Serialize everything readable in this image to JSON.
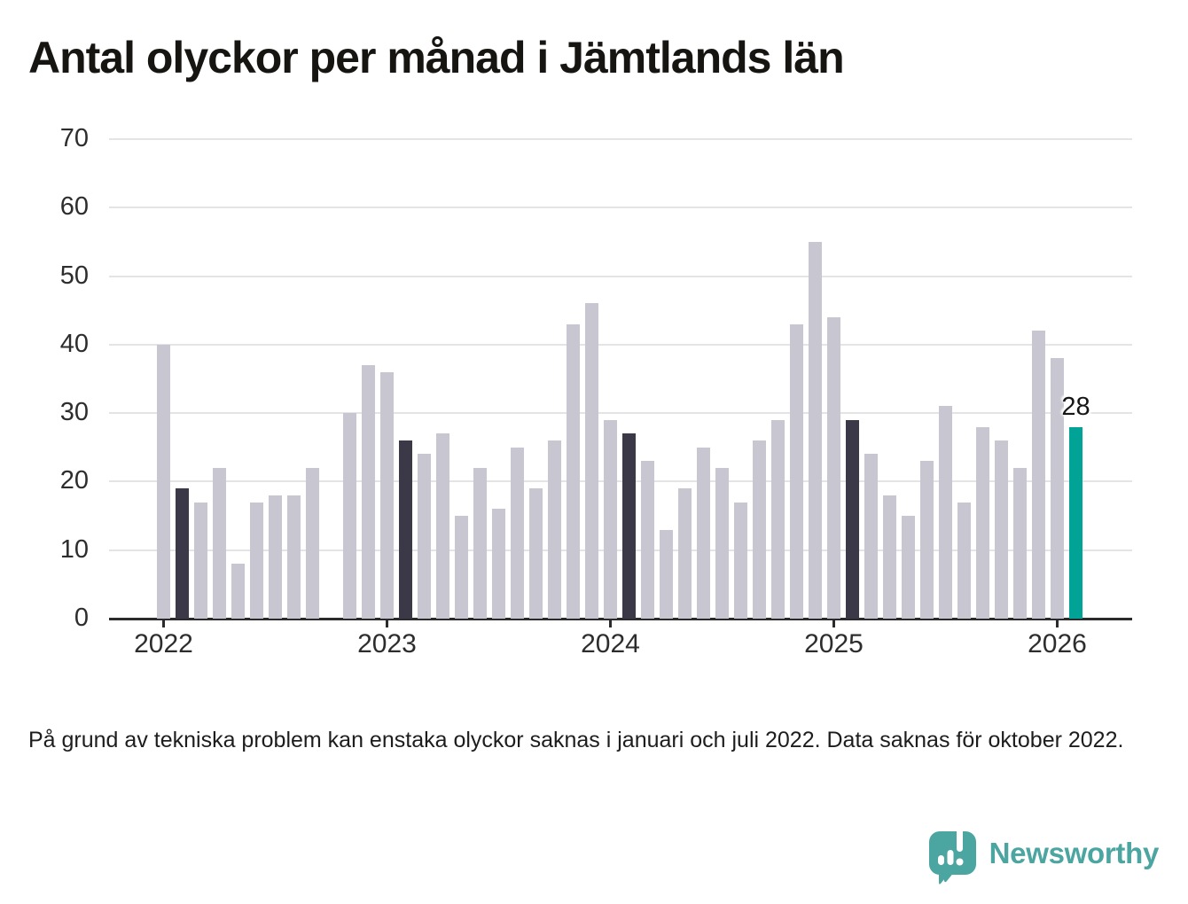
{
  "title": "Antal olyckor per månad i Jämtlands län",
  "footnote": "På grund av tekniska problem kan enstaka olyckor saknas i januari och juli 2022. Data saknas för oktober 2022.",
  "branding": {
    "name": "Newsworthy",
    "logo_icon": "speech-bubble-bar-chart-icon",
    "logo_color": "#4ba5a0"
  },
  "chart_data": {
    "type": "bar",
    "title": "Antal olyckor per månad i Jämtlands län",
    "xlabel": "",
    "ylabel": "",
    "ylim": [
      0,
      70
    ],
    "yticks": [
      0,
      10,
      20,
      30,
      40,
      50,
      60,
      70
    ],
    "grid": "horizontal",
    "legend_position": "none",
    "x_year_ticks": [
      {
        "label": "2022",
        "month_index": 0
      },
      {
        "label": "2023",
        "month_index": 12
      },
      {
        "label": "2024",
        "month_index": 24
      },
      {
        "label": "2025",
        "month_index": 36
      },
      {
        "label": "2026",
        "month_index": 48
      }
    ],
    "bars": [
      {
        "month": "2022-01",
        "value": 40,
        "style": "normal"
      },
      {
        "month": "2022-02",
        "value": 19,
        "style": "dark"
      },
      {
        "month": "2022-03",
        "value": 17,
        "style": "normal"
      },
      {
        "month": "2022-04",
        "value": 22,
        "style": "normal"
      },
      {
        "month": "2022-05",
        "value": 8,
        "style": "normal"
      },
      {
        "month": "2022-06",
        "value": 17,
        "style": "normal"
      },
      {
        "month": "2022-07",
        "value": 18,
        "style": "normal"
      },
      {
        "month": "2022-08",
        "value": 18,
        "style": "normal"
      },
      {
        "month": "2022-09",
        "value": 22,
        "style": "normal"
      },
      {
        "month": "2022-10",
        "value": null,
        "style": "missing"
      },
      {
        "month": "2022-11",
        "value": 30,
        "style": "normal"
      },
      {
        "month": "2022-12",
        "value": 37,
        "style": "normal"
      },
      {
        "month": "2023-01",
        "value": 36,
        "style": "normal"
      },
      {
        "month": "2023-02",
        "value": 26,
        "style": "dark"
      },
      {
        "month": "2023-03",
        "value": 24,
        "style": "normal"
      },
      {
        "month": "2023-04",
        "value": 27,
        "style": "normal"
      },
      {
        "month": "2023-05",
        "value": 15,
        "style": "normal"
      },
      {
        "month": "2023-06",
        "value": 22,
        "style": "normal"
      },
      {
        "month": "2023-07",
        "value": 16,
        "style": "normal"
      },
      {
        "month": "2023-08",
        "value": 25,
        "style": "normal"
      },
      {
        "month": "2023-09",
        "value": 19,
        "style": "normal"
      },
      {
        "month": "2023-10",
        "value": 26,
        "style": "normal"
      },
      {
        "month": "2023-11",
        "value": 43,
        "style": "normal"
      },
      {
        "month": "2023-12",
        "value": 46,
        "style": "normal"
      },
      {
        "month": "2024-01",
        "value": 29,
        "style": "normal"
      },
      {
        "month": "2024-02",
        "value": 27,
        "style": "dark"
      },
      {
        "month": "2024-03",
        "value": 23,
        "style": "normal"
      },
      {
        "month": "2024-04",
        "value": 13,
        "style": "normal"
      },
      {
        "month": "2024-05",
        "value": 19,
        "style": "normal"
      },
      {
        "month": "2024-06",
        "value": 25,
        "style": "normal"
      },
      {
        "month": "2024-07",
        "value": 22,
        "style": "normal"
      },
      {
        "month": "2024-08",
        "value": 17,
        "style": "normal"
      },
      {
        "month": "2024-09",
        "value": 26,
        "style": "normal"
      },
      {
        "month": "2024-10",
        "value": 29,
        "style": "normal"
      },
      {
        "month": "2024-11",
        "value": 43,
        "style": "normal"
      },
      {
        "month": "2024-12",
        "value": 55,
        "style": "normal"
      },
      {
        "month": "2025-01",
        "value": 44,
        "style": "normal"
      },
      {
        "month": "2025-02",
        "value": 29,
        "style": "dark"
      },
      {
        "month": "2025-03",
        "value": 24,
        "style": "normal"
      },
      {
        "month": "2025-04",
        "value": 18,
        "style": "normal"
      },
      {
        "month": "2025-05",
        "value": 15,
        "style": "normal"
      },
      {
        "month": "2025-06",
        "value": 23,
        "style": "normal"
      },
      {
        "month": "2025-07",
        "value": 31,
        "style": "normal"
      },
      {
        "month": "2025-08",
        "value": 17,
        "style": "normal"
      },
      {
        "month": "2025-09",
        "value": 28,
        "style": "normal"
      },
      {
        "month": "2025-10",
        "value": 26,
        "style": "normal"
      },
      {
        "month": "2025-11",
        "value": 22,
        "style": "normal"
      },
      {
        "month": "2025-12",
        "value": 42,
        "style": "normal"
      },
      {
        "month": "2026-01",
        "value": 38,
        "style": "normal"
      },
      {
        "month": "2026-02",
        "value": 28,
        "style": "highlight",
        "label": "28"
      }
    ],
    "annotation": {
      "text": "28",
      "month_index": 49
    },
    "colors": {
      "normal": "#c8c7d1",
      "dark": "#3b3947",
      "highlight": "#00a396",
      "axis": "#2b2b2b",
      "gridline": "#e4e4e6",
      "tick_label": "#2d2d2d"
    }
  }
}
